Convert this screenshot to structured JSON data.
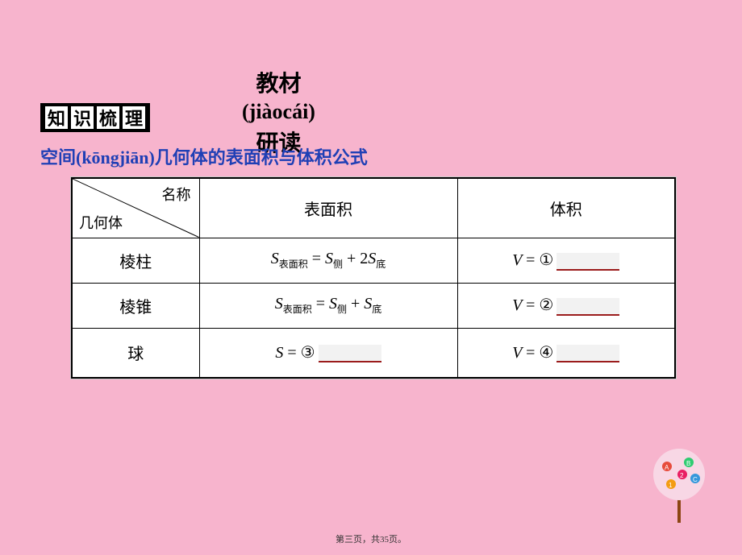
{
  "title": {
    "line1": "教材",
    "line2": "(jiàocái)",
    "line3": "研读"
  },
  "badge": {
    "chars": [
      "知",
      "识",
      "梳",
      "理"
    ]
  },
  "subtitle": "空间(kōngjiān)几何体的表面积与体积公式",
  "table": {
    "header": {
      "diag_top": "名称",
      "diag_bottom": "几何体",
      "col2": "表面积",
      "col3": "体积"
    },
    "rows": [
      {
        "name": "棱柱",
        "surface_html": "<span class='formula'>S<span class='sub'>表面积</span> <span class='rm'>=</span> S<span class='sub'>侧</span> <span class='rm'>+ 2</span>S<span class='sub'>底</span></span>",
        "volume_html": "<span class='formula'>V <span class='rm'>= ①</span></span><span class='blank'></span>"
      },
      {
        "name": "棱锥",
        "surface_html": "<span class='formula'>S<span class='sub'>表面积</span> <span class='rm'>=</span> S<span class='sub'>侧</span> <span class='rm'>+</span> S<span class='sub'>底</span></span>",
        "volume_html": "<span class='formula'>V <span class='rm'>= ②</span></span><span class='blank'></span>"
      },
      {
        "name": "球",
        "surface_html": "<span class='formula'>S <span class='rm'>= ③</span></span><span class='blank'></span>",
        "volume_html": "<span class='formula'>V <span class='rm'>= ④</span></span><span class='blank'></span>"
      }
    ]
  },
  "footer": "第三页，共35页。",
  "colors": {
    "page_bg": "#f7b4cd",
    "badge_bg": "#000000",
    "badge_tile": "#ffffff",
    "subtitle_color": "#1f3fb5",
    "blank_bg": "#f2f2f2",
    "blank_underline": "#9b1c1c",
    "table_border": "#000000",
    "table_bg": "#ffffff"
  },
  "deco_colors": [
    "#f39c12",
    "#e74c3c",
    "#2ecc71",
    "#3498db",
    "#e91e63",
    "#9b59b6",
    "#f1c40f"
  ]
}
